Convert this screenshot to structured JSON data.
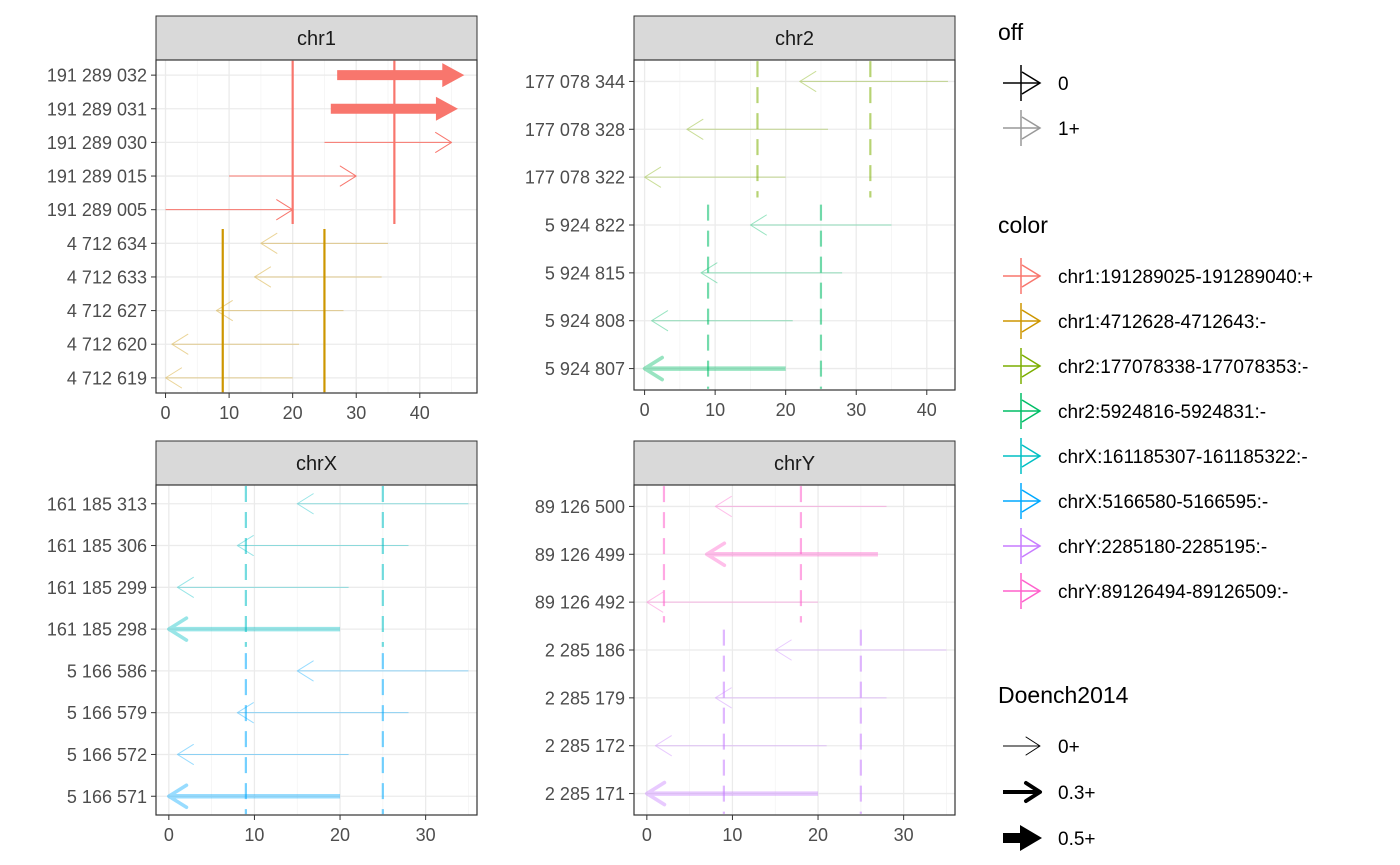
{
  "chart_data": {
    "type": "faceted-arrow-chart",
    "colors": {
      "chr1:191289025-191289040:+": "#F8766D",
      "chr1:4712628-4712643:-": "#CD9600",
      "chr2:177078338-177078353:-": "#7CAE00",
      "chr2:5924816-5924831:-": "#00BE67",
      "chrX:161185307-161185322:-": "#00BFC4",
      "chrX:5166580-5166595:-": "#00A9FF",
      "chrY:2285180-2285195:-": "#C77CFF",
      "chrY:89126494-89126509:-": "#FF61CC"
    },
    "panels": [
      {
        "strip": "chr1",
        "xlim": [
          -1.5,
          49
        ],
        "xticks": [
          0,
          10,
          20,
          30,
          40
        ],
        "yticks": [
          "191 289 032",
          "191 289 031",
          "191 289 030",
          "191 289 015",
          "191 289 005",
          "4 712 634",
          "4 712 633",
          "4 712 627",
          "4 712 620",
          "4 712 619"
        ],
        "arrows": [
          {
            "row": 0,
            "x_start": 27,
            "x_end": 47,
            "color": "chr1:191289025-191289040:+",
            "off": "0",
            "doench": "0.5+"
          },
          {
            "row": 1,
            "x_start": 26,
            "x_end": 46,
            "color": "chr1:191289025-191289040:+",
            "off": "0",
            "doench": "0.5+"
          },
          {
            "row": 2,
            "x_start": 25,
            "x_end": 45,
            "color": "chr1:191289025-191289040:+",
            "off": "0",
            "doench": "0+"
          },
          {
            "row": 3,
            "x_start": 10,
            "x_end": 30,
            "color": "chr1:191289025-191289040:+",
            "off": "0",
            "doench": "0+"
          },
          {
            "row": 4,
            "x_start": 0,
            "x_end": 20,
            "color": "chr1:191289025-191289040:+",
            "off": "0",
            "doench": "0+"
          },
          {
            "row": 5,
            "x_start": 35,
            "x_end": 15,
            "color": "chr1:4712628-4712643:-",
            "off": "1+",
            "doench": "0+"
          },
          {
            "row": 6,
            "x_start": 34,
            "x_end": 14,
            "color": "chr1:4712628-4712643:-",
            "off": "1+",
            "doench": "0+"
          },
          {
            "row": 7,
            "x_start": 28,
            "x_end": 8,
            "color": "chr1:4712628-4712643:-",
            "off": "1+",
            "doench": "0+"
          },
          {
            "row": 8,
            "x_start": 21,
            "x_end": 1,
            "color": "chr1:4712628-4712643:-",
            "off": "1+",
            "doench": "0+"
          },
          {
            "row": 9,
            "x_start": 20,
            "x_end": 0,
            "color": "chr1:4712628-4712643:-",
            "off": "1+",
            "doench": "0+"
          }
        ],
        "vlines": [
          {
            "x": 20,
            "row_from": 0,
            "row_to": 4,
            "color": "chr1:191289025-191289040:+",
            "dashed": false
          },
          {
            "x": 36,
            "row_from": 0,
            "row_to": 4,
            "color": "chr1:191289025-191289040:+",
            "dashed": false
          },
          {
            "x": 9,
            "row_from": 5,
            "row_to": 9,
            "color": "chr1:4712628-4712643:-",
            "dashed": false
          },
          {
            "x": 25,
            "row_from": 5,
            "row_to": 9,
            "color": "chr1:4712628-4712643:-",
            "dashed": false
          }
        ]
      },
      {
        "strip": "chr2",
        "xlim": [
          -1.5,
          44
        ],
        "xticks": [
          0,
          10,
          20,
          30,
          40
        ],
        "yticks": [
          "177 078 344",
          "177 078 328",
          "177 078 322",
          "5 924 822",
          "5 924 815",
          "5 924 808",
          "5 924 807"
        ],
        "arrows": [
          {
            "row": 0,
            "x_start": 43,
            "x_end": 22,
            "color": "chr2:177078338-177078353:-",
            "off": "1+",
            "doench": "0+"
          },
          {
            "row": 1,
            "x_start": 26,
            "x_end": 6,
            "color": "chr2:177078338-177078353:-",
            "off": "1+",
            "doench": "0+"
          },
          {
            "row": 2,
            "x_start": 20,
            "x_end": 0,
            "color": "chr2:177078338-177078353:-",
            "off": "1+",
            "doench": "0+"
          },
          {
            "row": 3,
            "x_start": 35,
            "x_end": 15,
            "color": "chr2:5924816-5924831:-",
            "off": "1+",
            "doench": "0+"
          },
          {
            "row": 4,
            "x_start": 28,
            "x_end": 8,
            "color": "chr2:5924816-5924831:-",
            "off": "1+",
            "doench": "0+"
          },
          {
            "row": 5,
            "x_start": 21,
            "x_end": 1,
            "color": "chr2:5924816-5924831:-",
            "off": "1+",
            "doench": "0+"
          },
          {
            "row": 6,
            "x_start": 20,
            "x_end": 0,
            "color": "chr2:5924816-5924831:-",
            "off": "1+",
            "doench": "0.3+"
          }
        ],
        "vlines": [
          {
            "x": 16,
            "row_from": 0,
            "row_to": 2,
            "color": "chr2:177078338-177078353:-",
            "dashed": true
          },
          {
            "x": 32,
            "row_from": 0,
            "row_to": 2,
            "color": "chr2:177078338-177078353:-",
            "dashed": true
          },
          {
            "x": 9,
            "row_from": 3,
            "row_to": 6,
            "color": "chr2:5924816-5924831:-",
            "dashed": true
          },
          {
            "x": 25,
            "row_from": 3,
            "row_to": 6,
            "color": "chr2:5924816-5924831:-",
            "dashed": true
          }
        ]
      },
      {
        "strip": "chrX",
        "xlim": [
          -1.5,
          36
        ],
        "xticks": [
          0,
          10,
          20,
          30
        ],
        "yticks": [
          "161 185 313",
          "161 185 306",
          "161 185 299",
          "161 185 298",
          "5 166 586",
          "5 166 579",
          "5 166 572",
          "5 166 571"
        ],
        "arrows": [
          {
            "row": 0,
            "x_start": 35,
            "x_end": 15,
            "color": "chrX:161185307-161185322:-",
            "off": "1+",
            "doench": "0+"
          },
          {
            "row": 1,
            "x_start": 28,
            "x_end": 8,
            "color": "chrX:161185307-161185322:-",
            "off": "1+",
            "doench": "0+"
          },
          {
            "row": 2,
            "x_start": 21,
            "x_end": 1,
            "color": "chrX:161185307-161185322:-",
            "off": "1+",
            "doench": "0+"
          },
          {
            "row": 3,
            "x_start": 20,
            "x_end": 0,
            "color": "chrX:161185307-161185322:-",
            "off": "1+",
            "doench": "0.3+"
          },
          {
            "row": 4,
            "x_start": 35,
            "x_end": 15,
            "color": "chrX:5166580-5166595:-",
            "off": "1+",
            "doench": "0+"
          },
          {
            "row": 5,
            "x_start": 28,
            "x_end": 8,
            "color": "chrX:5166580-5166595:-",
            "off": "1+",
            "doench": "0+"
          },
          {
            "row": 6,
            "x_start": 21,
            "x_end": 1,
            "color": "chrX:5166580-5166595:-",
            "off": "1+",
            "doench": "0+"
          },
          {
            "row": 7,
            "x_start": 20,
            "x_end": 0,
            "color": "chrX:5166580-5166595:-",
            "off": "1+",
            "doench": "0.3+"
          }
        ],
        "vlines": [
          {
            "x": 9,
            "row_from": 0,
            "row_to": 3,
            "color": "chrX:161185307-161185322:-",
            "dashed": true
          },
          {
            "x": 25,
            "row_from": 0,
            "row_to": 3,
            "color": "chrX:161185307-161185322:-",
            "dashed": true
          },
          {
            "x": 9,
            "row_from": 4,
            "row_to": 7,
            "color": "chrX:5166580-5166595:-",
            "dashed": true
          },
          {
            "x": 25,
            "row_from": 4,
            "row_to": 7,
            "color": "chrX:5166580-5166595:-",
            "dashed": true
          }
        ]
      },
      {
        "strip": "chrY",
        "xlim": [
          -1.5,
          36
        ],
        "xticks": [
          0,
          10,
          20,
          30
        ],
        "yticks": [
          "89 126 500",
          "89 126 499",
          "89 126 492",
          "2 285 186",
          "2 285 179",
          "2 285 172",
          "2 285 171"
        ],
        "arrows": [
          {
            "row": 0,
            "x_start": 28,
            "x_end": 8,
            "color": "chrY:89126494-89126509:-",
            "off": "1+",
            "doench": "0+"
          },
          {
            "row": 1,
            "x_start": 27,
            "x_end": 7,
            "color": "chrY:89126494-89126509:-",
            "off": "1+",
            "doench": "0.3+"
          },
          {
            "row": 2,
            "x_start": 20,
            "x_end": 0,
            "color": "chrY:89126494-89126509:-",
            "off": "1+",
            "doench": "0+"
          },
          {
            "row": 3,
            "x_start": 35,
            "x_end": 15,
            "color": "chrY:2285180-2285195:-",
            "off": "1+",
            "doench": "0+"
          },
          {
            "row": 4,
            "x_start": 28,
            "x_end": 8,
            "color": "chrY:2285180-2285195:-",
            "off": "1+",
            "doench": "0+"
          },
          {
            "row": 5,
            "x_start": 21,
            "x_end": 1,
            "color": "chrY:2285180-2285195:-",
            "off": "1+",
            "doench": "0+"
          },
          {
            "row": 6,
            "x_start": 20,
            "x_end": 0,
            "color": "chrY:2285180-2285195:-",
            "off": "1+",
            "doench": "0.3+"
          }
        ],
        "vlines": [
          {
            "x": 2,
            "row_from": 0,
            "row_to": 2,
            "color": "chrY:89126494-89126509:-",
            "dashed": true
          },
          {
            "x": 18,
            "row_from": 0,
            "row_to": 2,
            "color": "chrY:89126494-89126509:-",
            "dashed": true
          },
          {
            "x": 9,
            "row_from": 3,
            "row_to": 6,
            "color": "chrY:2285180-2285195:-",
            "dashed": true
          },
          {
            "x": 25,
            "row_from": 3,
            "row_to": 6,
            "color": "chrY:2285180-2285195:-",
            "dashed": true
          }
        ]
      }
    ],
    "legend": {
      "placement": "right",
      "off": {
        "title": "off",
        "levels": [
          "0",
          "1+"
        ]
      },
      "color": {
        "title": "color",
        "levels": [
          "chr1:191289025-191289040:+",
          "chr1:4712628-4712643:-",
          "chr2:177078338-177078353:-",
          "chr2:5924816-5924831:-",
          "chrX:161185307-161185322:-",
          "chrX:5166580-5166595:-",
          "chrY:2285180-2285195:-",
          "chrY:89126494-89126509:-"
        ]
      },
      "doench": {
        "title": "Doench2014",
        "levels": [
          "0+",
          "0.3+",
          "0.5+"
        ]
      }
    }
  }
}
